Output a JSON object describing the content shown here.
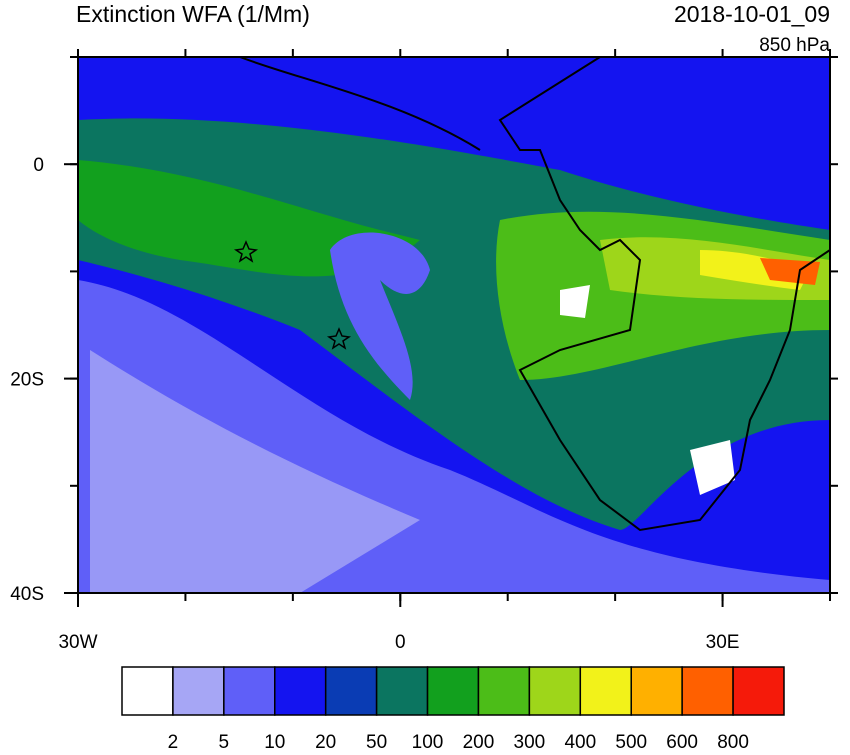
{
  "header": {
    "title": "Extinction WFA (1/Mm)",
    "datetime": "2018-10-01_09",
    "level": "850 hPa"
  },
  "map": {
    "lat_lim": [
      -40,
      10
    ],
    "lon_lim": [
      -30,
      40
    ],
    "lat_ticks": [
      {
        "value": 0,
        "label": "0"
      },
      {
        "value": -20,
        "label": "20S"
      },
      {
        "value": -40,
        "label": "40S"
      }
    ],
    "lon_ticks": [
      {
        "value": -30,
        "label": "30W"
      },
      {
        "value": 0,
        "label": "0"
      },
      {
        "value": 30,
        "label": "30E"
      }
    ]
  },
  "colorbar": {
    "levels": [
      2,
      5,
      10,
      20,
      50,
      100,
      200,
      300,
      400,
      500,
      600,
      800
    ],
    "colors": [
      "#ffffff",
      "#a6a6f5",
      "#5f5ff8",
      "#1414f0",
      "#0a3cb4",
      "#0b7560",
      "#12a01e",
      "#4cbd18",
      "#9ed61a",
      "#f2f21a",
      "#ffb000",
      "#ff6000",
      "#f51a0a"
    ]
  }
}
